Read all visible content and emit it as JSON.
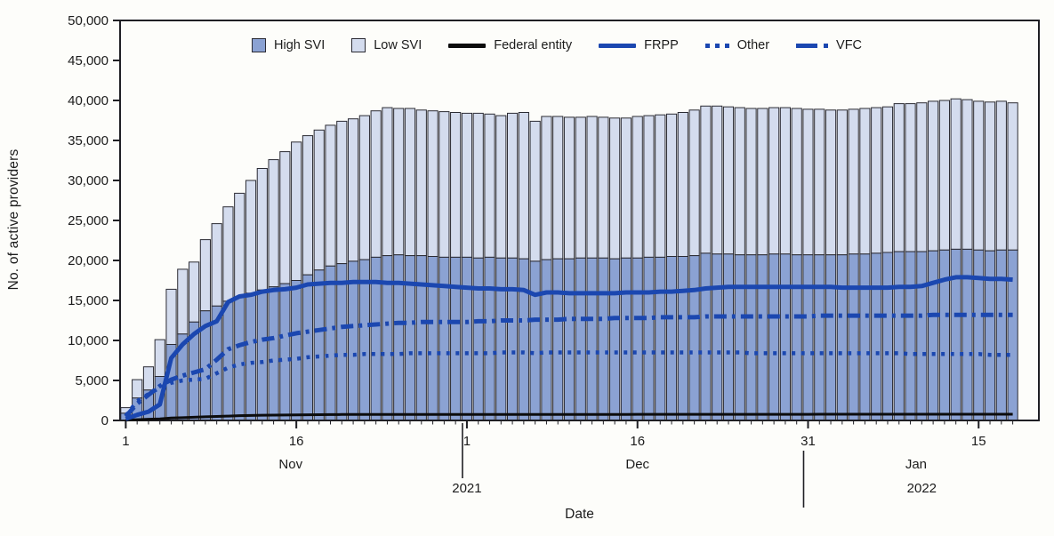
{
  "figure": {
    "background": "#fdfdfa",
    "y_axis_title": "No. of active providers",
    "x_axis_title": "Date"
  },
  "legend": {
    "items": [
      {
        "label": "High SVI",
        "swatch": "square",
        "color": "#8ba2d3"
      },
      {
        "label": "Low SVI",
        "swatch": "square",
        "color": "#d4dcee"
      },
      {
        "label": "Federal entity",
        "swatch": "solid-line",
        "color": "#0c0c0c"
      },
      {
        "label": "FRPP",
        "swatch": "solid-line",
        "color": "#1b47b0"
      },
      {
        "label": "Other",
        "swatch": "dotted-line",
        "color": "#1b47b0"
      },
      {
        "label": "VFC",
        "swatch": "dashdot-line",
        "color": "#1b47b0"
      }
    ]
  },
  "chart_data": {
    "type": "bar",
    "subtype": "stacked-daily-bars-with-overlaid-lines",
    "title": "",
    "xlabel": "Date",
    "ylabel": "No. of active providers",
    "ylim": [
      0,
      50000
    ],
    "y_ticks": [
      {
        "value": 0,
        "label": "0"
      },
      {
        "value": 5000,
        "label": "5,000"
      },
      {
        "value": 10000,
        "label": "10,000"
      },
      {
        "value": 15000,
        "label": "15,000"
      },
      {
        "value": 20000,
        "label": "20,000"
      },
      {
        "value": 25000,
        "label": "25,000"
      },
      {
        "value": 30000,
        "label": "30,000"
      },
      {
        "value": 35000,
        "label": "35,000"
      },
      {
        "value": 40000,
        "label": "40,000"
      },
      {
        "value": 45000,
        "label": "45,000"
      },
      {
        "value": 50000,
        "label": "50,000"
      }
    ],
    "x_major_ticks": [
      {
        "index": 0,
        "label": "1"
      },
      {
        "index": 15,
        "label": "16"
      },
      {
        "index": 30,
        "label": "1"
      },
      {
        "index": 45,
        "label": "16"
      },
      {
        "index": 60,
        "label": "31"
      },
      {
        "index": 75,
        "label": "15"
      }
    ],
    "month_labels": [
      {
        "label": "Nov",
        "start": 0,
        "end": 29
      },
      {
        "label": "Dec",
        "start": 30,
        "end": 60
      },
      {
        "label": "Jan",
        "start": 61,
        "end": 78
      }
    ],
    "year_labels": [
      {
        "label": "2021",
        "anchor_index": 30
      },
      {
        "label": "2022",
        "anchor_index": 70
      }
    ],
    "year_separators": [
      {
        "index": 30,
        "y1_offset": 3,
        "y2_offset": 65
      },
      {
        "index": 60,
        "y1_offset": 34,
        "y2_offset": 98
      }
    ],
    "bar_outline_color": "#2b2b33",
    "axis_color": "#1f1f24",
    "dates": [
      "Nov 1",
      "Nov 2",
      "Nov 3",
      "Nov 4",
      "Nov 5",
      "Nov 6",
      "Nov 7",
      "Nov 8",
      "Nov 9",
      "Nov 10",
      "Nov 11",
      "Nov 12",
      "Nov 13",
      "Nov 14",
      "Nov 15",
      "Nov 16",
      "Nov 17",
      "Nov 18",
      "Nov 19",
      "Nov 20",
      "Nov 21",
      "Nov 22",
      "Nov 23",
      "Nov 24",
      "Nov 25",
      "Nov 26",
      "Nov 27",
      "Nov 28",
      "Nov 29",
      "Nov 30",
      "Dec 1",
      "Dec 2",
      "Dec 3",
      "Dec 4",
      "Dec 5",
      "Dec 6",
      "Dec 7",
      "Dec 8",
      "Dec 9",
      "Dec 10",
      "Dec 11",
      "Dec 12",
      "Dec 13",
      "Dec 14",
      "Dec 15",
      "Dec 16",
      "Dec 17",
      "Dec 18",
      "Dec 19",
      "Dec 20",
      "Dec 21",
      "Dec 22",
      "Dec 23",
      "Dec 24",
      "Dec 25",
      "Dec 26",
      "Dec 27",
      "Dec 28",
      "Dec 29",
      "Dec 30",
      "Dec 31",
      "Jan 1",
      "Jan 2",
      "Jan 3",
      "Jan 4",
      "Jan 5",
      "Jan 6",
      "Jan 7",
      "Jan 8",
      "Jan 9",
      "Jan 10",
      "Jan 11",
      "Jan 12",
      "Jan 13",
      "Jan 14",
      "Jan 15",
      "Jan 16",
      "Jan 17",
      "Jan 18"
    ],
    "bar_series": [
      {
        "name": "High SVI",
        "color": "#8ba2d3",
        "values": [
          900,
          2800,
          3800,
          5500,
          9500,
          10800,
          12300,
          13700,
          14300,
          14900,
          15400,
          15900,
          16300,
          16700,
          17100,
          17500,
          18200,
          18800,
          19300,
          19600,
          19900,
          20100,
          20400,
          20600,
          20700,
          20600,
          20600,
          20500,
          20400,
          20400,
          20400,
          20300,
          20400,
          20300,
          20300,
          20200,
          19900,
          20100,
          20200,
          20200,
          20300,
          20300,
          20300,
          20200,
          20300,
          20300,
          20400,
          20400,
          20500,
          20500,
          20600,
          20900,
          20800,
          20800,
          20700,
          20700,
          20700,
          20800,
          20800,
          20700,
          20700,
          20700,
          20700,
          20700,
          20800,
          20800,
          20900,
          21000,
          21100,
          21100,
          21100,
          21200,
          21300,
          21400,
          21400,
          21300,
          21200,
          21300,
          21300
        ]
      },
      {
        "name": "Low SVI",
        "color": "#d4dcee",
        "values": [
          700,
          2300,
          2900,
          4600,
          6900,
          8100,
          7500,
          8900,
          10300,
          11800,
          13000,
          14100,
          15200,
          15900,
          16500,
          17300,
          17400,
          17500,
          17600,
          17800,
          17800,
          18000,
          18300,
          18500,
          18300,
          18400,
          18200,
          18200,
          18200,
          18100,
          18000,
          18100,
          17900,
          17800,
          18100,
          18300,
          17500,
          17900,
          17800,
          17700,
          17600,
          17700,
          17600,
          17600,
          17500,
          17700,
          17700,
          17800,
          17800,
          18000,
          18200,
          18400,
          18500,
          18400,
          18400,
          18300,
          18300,
          18300,
          18300,
          18300,
          18200,
          18200,
          18100,
          18100,
          18100,
          18200,
          18200,
          18200,
          18500,
          18500,
          18600,
          18700,
          18700,
          18800,
          18700,
          18600,
          18600,
          18600,
          18400
        ]
      }
    ],
    "line_series": [
      {
        "name": "Federal entity",
        "color": "#0c0c0c",
        "style": "solid",
        "width": 3,
        "values": [
          50,
          100,
          150,
          200,
          300,
          350,
          400,
          450,
          500,
          550,
          600,
          620,
          650,
          670,
          680,
          700,
          710,
          720,
          730,
          740,
          750,
          750,
          750,
          750,
          750,
          750,
          750,
          750,
          750,
          750,
          760,
          760,
          760,
          760,
          760,
          760,
          760,
          760,
          760,
          760,
          760,
          760,
          760,
          760,
          760,
          770,
          770,
          770,
          770,
          770,
          770,
          770,
          770,
          770,
          770,
          770,
          770,
          770,
          770,
          770,
          770,
          780,
          780,
          780,
          780,
          780,
          780,
          780,
          780,
          780,
          780,
          780,
          780,
          780,
          780,
          780,
          780,
          780,
          780
        ]
      },
      {
        "name": "FRPP",
        "color": "#1b47b0",
        "style": "solid",
        "width": 5,
        "values": [
          200,
          700,
          1100,
          2000,
          7800,
          9500,
          10800,
          11800,
          12400,
          14800,
          15500,
          15700,
          16100,
          16300,
          16400,
          16600,
          17000,
          17100,
          17200,
          17200,
          17300,
          17300,
          17300,
          17200,
          17200,
          17100,
          17000,
          16900,
          16800,
          16700,
          16600,
          16500,
          16500,
          16400,
          16400,
          16300,
          15700,
          16000,
          16000,
          15900,
          15900,
          15900,
          15900,
          15900,
          16000,
          16000,
          16000,
          16100,
          16100,
          16200,
          16300,
          16500,
          16600,
          16700,
          16700,
          16700,
          16700,
          16700,
          16700,
          16700,
          16700,
          16700,
          16700,
          16600,
          16600,
          16600,
          16600,
          16600,
          16700,
          16700,
          16800,
          17200,
          17600,
          17900,
          17900,
          17800,
          17700,
          17700,
          17600
        ]
      },
      {
        "name": "Other",
        "color": "#1b47b0",
        "style": "dotted",
        "width": 4.5,
        "values": [
          600,
          2400,
          3300,
          4100,
          4700,
          5000,
          5100,
          5200,
          5900,
          6600,
          7000,
          7200,
          7300,
          7500,
          7600,
          7700,
          7900,
          8000,
          8100,
          8200,
          8200,
          8300,
          8300,
          8300,
          8300,
          8400,
          8400,
          8400,
          8400,
          8400,
          8400,
          8400,
          8400,
          8500,
          8500,
          8500,
          8400,
          8500,
          8500,
          8500,
          8500,
          8500,
          8500,
          8500,
          8500,
          8500,
          8500,
          8500,
          8500,
          8500,
          8500,
          8500,
          8500,
          8500,
          8500,
          8400,
          8400,
          8400,
          8400,
          8400,
          8400,
          8400,
          8400,
          8400,
          8400,
          8400,
          8400,
          8400,
          8400,
          8300,
          8300,
          8300,
          8300,
          8300,
          8300,
          8300,
          8200,
          8200,
          8200
        ]
      },
      {
        "name": "VFC",
        "color": "#1b47b0",
        "style": "dashdot",
        "width": 5,
        "values": [
          500,
          2100,
          3200,
          4300,
          5100,
          5600,
          6000,
          6400,
          7600,
          8900,
          9400,
          9800,
          10100,
          10300,
          10600,
          10900,
          11100,
          11300,
          11500,
          11700,
          11800,
          11900,
          12000,
          12100,
          12200,
          12200,
          12300,
          12300,
          12300,
          12300,
          12300,
          12400,
          12400,
          12500,
          12500,
          12500,
          12600,
          12600,
          12600,
          12700,
          12700,
          12700,
          12700,
          12800,
          12800,
          12800,
          12800,
          12900,
          12900,
          12900,
          12900,
          13000,
          13000,
          13000,
          13000,
          13000,
          13000,
          13000,
          13000,
          13000,
          13000,
          13100,
          13100,
          13100,
          13100,
          13100,
          13100,
          13100,
          13100,
          13100,
          13100,
          13200,
          13200,
          13200,
          13200,
          13200,
          13200,
          13200,
          13200
        ]
      }
    ]
  }
}
